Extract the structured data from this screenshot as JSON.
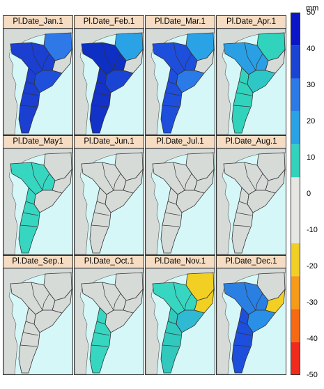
{
  "panels": [
    {
      "title": "Pl.Date_Jan.1",
      "fills": {
        "west": "#1a3fd1",
        "north": "#2e78e8",
        "east": "#d7dbd8",
        "south": "#1a3fd1",
        "coast": "#1f50db"
      }
    },
    {
      "title": "Pl.Date_Feb.1",
      "fills": {
        "west": "#0d2fc4",
        "north": "#2aa3e6",
        "east": "#d7dbd8",
        "south": "#1232c8",
        "coast": "#1a45d4"
      }
    },
    {
      "title": "Pl.Date_Mar.1",
      "fills": {
        "west": "#1d4fdc",
        "north": "#2aa3e6",
        "east": "#d7dbd8",
        "south": "#1d4fdc",
        "coast": "#2a7ae8"
      }
    },
    {
      "title": "Pl.Date_Apr.1",
      "fills": {
        "west": "#2a9fe4",
        "north": "#31d3bd",
        "east": "#d7dbd8",
        "south": "#31d3bd",
        "coast": "#2fc7c6"
      }
    },
    {
      "title": "Pl.Date_May1",
      "fills": {
        "west": "#37d6c1",
        "north": "#d7dbd8",
        "east": "#d7dbd8",
        "south": "#37d6c1",
        "coast": "#d7dbd8"
      }
    },
    {
      "title": "Pl.Date_Jun.1",
      "fills": {
        "west": "#d7dbd8",
        "north": "#d7dbd8",
        "east": "#d7dbd8",
        "south": "#d7dbd8",
        "coast": "#d7dbd8"
      }
    },
    {
      "title": "Pl.Date_Jul.1",
      "fills": {
        "west": "#d7dbd8",
        "north": "#d7dbd8",
        "east": "#d7dbd8",
        "south": "#d7dbd8",
        "coast": "#d7dbd8"
      }
    },
    {
      "title": "Pl.Date_Aug.1",
      "fills": {
        "west": "#d7dbd8",
        "north": "#d7dbd8",
        "east": "#d7dbd8",
        "south": "#d7dbd8",
        "coast": "#d7dbd8"
      }
    },
    {
      "title": "Pl.Date_Sep.1",
      "fills": {
        "west": "#d7dbd8",
        "north": "#d7dbd8",
        "east": "#d7dbd8",
        "south": "#d7dbd8",
        "coast": "#d7dbd8"
      }
    },
    {
      "title": "Pl.Date_Oct.1",
      "fills": {
        "west": "#d7dbd8",
        "north": "#d7dbd8",
        "east": "#d7dbd8",
        "south": "#37d6c1",
        "coast": "#d7dbd8"
      }
    },
    {
      "title": "Pl.Date_Nov.1",
      "fills": {
        "west": "#37d6c1",
        "north": "#f2cf23",
        "east": "#f2cf23",
        "south": "#31c9bd",
        "coast": "#2fb9d2"
      }
    },
    {
      "title": "Pl.Date_Dec.1",
      "fills": {
        "west": "#2a80e2",
        "north": "#d7dbd8",
        "east": "#f2cf23",
        "south": "#1d4fdc",
        "coast": "#2a8fe6"
      }
    }
  ],
  "legend": {
    "unit": "mm",
    "ticks": [
      "50",
      "40",
      "30",
      "20",
      "10",
      "0",
      "-10",
      "-20",
      "-30",
      "-40",
      "-50"
    ],
    "colors": [
      "#0a16c7",
      "#1a45d4",
      "#2a7ae8",
      "#2aa3e6",
      "#31d3bd",
      "#e6e7e2",
      "#e6e7e2",
      "#f2cf23",
      "#f79a17",
      "#f76a12",
      "#f22a1c"
    ]
  }
}
